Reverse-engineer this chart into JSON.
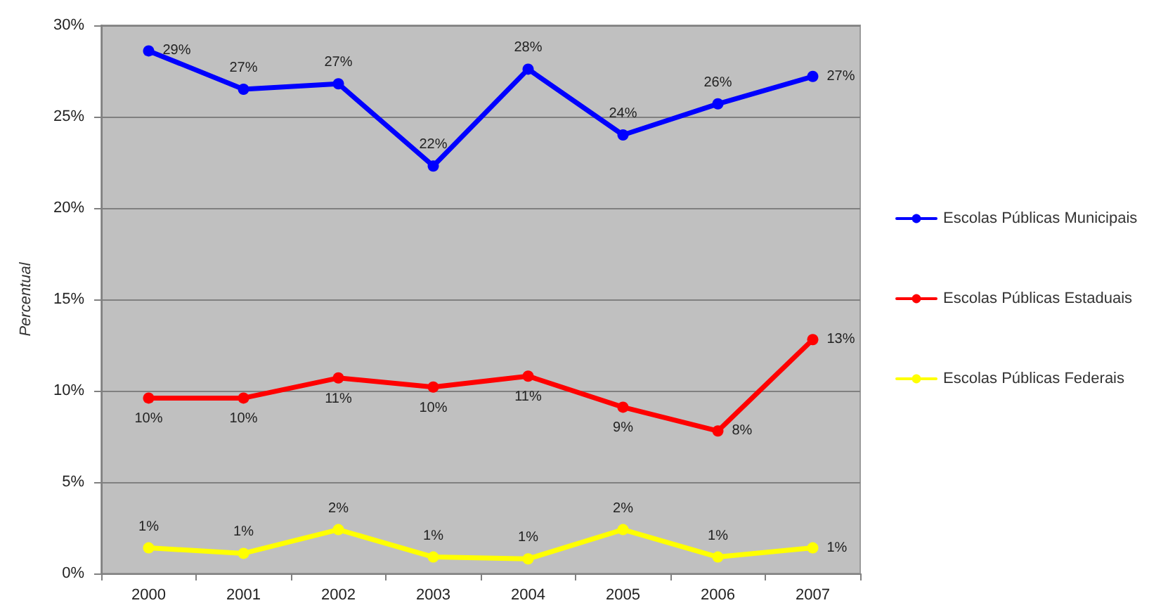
{
  "chart_data": {
    "type": "line",
    "ylabel": "Percentual",
    "categories": [
      "2000",
      "2001",
      "2002",
      "2003",
      "2004",
      "2005",
      "2006",
      "2007"
    ],
    "series": [
      {
        "name": "Escolas Públicas Municipais",
        "color": "#0000ff",
        "values": [
          28.6,
          26.5,
          26.8,
          22.3,
          27.6,
          24.0,
          25.7,
          27.2
        ],
        "value_labels": [
          "29%",
          "27%",
          "27%",
          "22%",
          "28%",
          "24%",
          "26%",
          "27%"
        ]
      },
      {
        "name": "Escolas Públicas Estaduais",
        "color": "#ff0000",
        "values": [
          9.6,
          9.6,
          10.7,
          10.2,
          10.8,
          9.1,
          7.8,
          12.8
        ],
        "value_labels": [
          "10%",
          "10%",
          "11%",
          "10%",
          "11%",
          "9%",
          "8%",
          "13%"
        ]
      },
      {
        "name": "Escolas Públicas Federais",
        "color": "#ffff00",
        "values": [
          1.4,
          1.1,
          2.4,
          0.9,
          0.8,
          2.4,
          0.9,
          1.4
        ],
        "value_labels": [
          "1%",
          "1%",
          "2%",
          "1%",
          "1%",
          "2%",
          "1%",
          "1%"
        ]
      }
    ],
    "ylim": [
      0,
      30
    ],
    "yticks": [
      {
        "value": 0,
        "label": "0%"
      },
      {
        "value": 5,
        "label": "5%"
      },
      {
        "value": 10,
        "label": "10%"
      },
      {
        "value": 15,
        "label": "15%"
      },
      {
        "value": 20,
        "label": "20%"
      },
      {
        "value": 25,
        "label": "25%"
      },
      {
        "value": 30,
        "label": "30%"
      }
    ],
    "grid": "y",
    "legend": "right",
    "marker": "circle"
  }
}
